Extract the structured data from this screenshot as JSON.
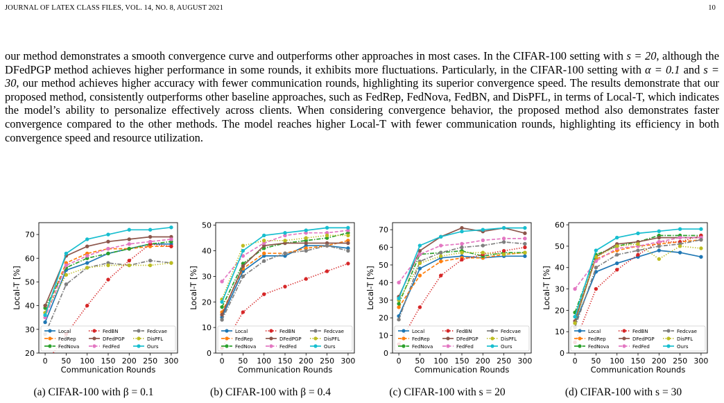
{
  "page": {
    "header_left": "JOURNAL OF LATEX CLASS FILES, VOL. 14, NO. 8, AUGUST 2021",
    "header_right": "10",
    "paragraph": {
      "s1": "our method demonstrates a smooth convergence curve and outperforms other approaches in most cases. In the CIFAR-100 setting with ",
      "m1": "s = 20",
      "s2": ", although the DFedPGP method achieves higher performance in some rounds, it exhibits more fluctuations. Particularly, in the CIFAR-100 setting with ",
      "m2": "α = 0.1",
      "s3": " and ",
      "m3": "s = 30",
      "s4": ", our method achieves higher accuracy with fewer communication rounds, highlighting its superior convergence speed. The results demonstrate that our proposed method, consistently outperforms other baseline approaches, such as FedRep, FedNova, FedBN, and DisPFL, in terms of Local-T, which indicates the model’s ability to personalize effectively across clients. When considering convergence behavior, the proposed method also demonstrates faster convergence compared to the other methods. The model reaches higher Local-T with fewer communication rounds, highlighting its efficiency in both convergence speed and resource utilization."
    }
  },
  "legend_style": {
    "Local": {
      "color": "#1f77b4",
      "dash": "solid"
    },
    "FedRep": {
      "color": "#ff7f0e",
      "dash": "dashed"
    },
    "FedNova": {
      "color": "#2ca02c",
      "dash": "dashdot"
    },
    "FedBN": {
      "color": "#d62728",
      "dash": "dotted"
    },
    "DFedPGP": {
      "color": "#8c564b",
      "dash": "solid"
    },
    "FedFed": {
      "color": "#e377c2",
      "dash": "dashed"
    },
    "Fedcvae": {
      "color": "#7f7f7f",
      "dash": "dashdot"
    },
    "DisPFL": {
      "color": "#bcbd22",
      "dash": "dotted"
    },
    "Ours": {
      "color": "#17becf",
      "dash": "solid"
    }
  },
  "chart_data": [
    {
      "type": "line",
      "caption": "(a) CIFAR-100 with β = 0.1",
      "xlabel": "Communication Rounds",
      "ylabel": "Local-T [%]",
      "x": [
        0,
        50,
        100,
        150,
        200,
        250,
        300
      ],
      "xticks": [
        0,
        50,
        100,
        150,
        200,
        250,
        300
      ],
      "yticks": [
        20,
        30,
        40,
        50,
        60,
        70
      ],
      "ylim": [
        20,
        75
      ],
      "xlim": [
        -15,
        315
      ],
      "legend": "lower-right",
      "series": [
        {
          "name": "Local",
          "values": [
            33,
            55,
            58,
            62,
            64,
            66,
            66
          ]
        },
        {
          "name": "FedRep",
          "values": [
            37,
            58,
            62,
            64,
            64,
            65,
            65
          ]
        },
        {
          "name": "FedNova",
          "values": [
            39,
            56,
            60,
            62,
            64,
            66,
            67
          ]
        },
        {
          "name": "FedBN",
          "values": [
            15,
            28,
            40,
            51,
            59,
            66,
            65
          ]
        },
        {
          "name": "DFedPGP",
          "values": [
            40,
            61,
            65,
            67,
            68,
            69,
            69
          ]
        },
        {
          "name": "FedFed",
          "values": [
            35,
            57,
            61,
            64,
            66,
            67,
            68
          ]
        },
        {
          "name": "Fedcvae",
          "values": [
            28,
            49,
            56,
            58,
            57,
            59,
            58
          ]
        },
        {
          "name": "DisPFL",
          "values": [
            37,
            53,
            56,
            57,
            57,
            57,
            58
          ]
        },
        {
          "name": "Ours",
          "values": [
            36,
            62,
            68,
            70,
            72,
            72,
            73
          ]
        }
      ]
    },
    {
      "type": "line",
      "caption": "(b) CIFAR-100 with β = 0.4",
      "xlabel": "Communication Rounds",
      "ylabel": "Local-T [%]",
      "x": [
        0,
        50,
        100,
        150,
        200,
        250,
        300
      ],
      "xticks": [
        0,
        50,
        100,
        150,
        200,
        250,
        300
      ],
      "yticks": [
        0,
        10,
        20,
        30,
        40,
        50
      ],
      "ylim": [
        0,
        51
      ],
      "xlim": [
        -15,
        315
      ],
      "legend": "lower-right",
      "series": [
        {
          "name": "Local",
          "values": [
            14,
            32,
            38,
            38,
            42,
            42,
            41
          ]
        },
        {
          "name": "FedRep",
          "values": [
            16,
            33,
            39,
            39,
            41,
            42,
            44
          ]
        },
        {
          "name": "FedNova",
          "values": [
            18,
            35,
            41,
            43,
            44,
            45,
            47
          ]
        },
        {
          "name": "FedBN",
          "values": [
            2,
            16,
            23,
            26,
            29,
            32,
            35
          ]
        },
        {
          "name": "DFedPGP",
          "values": [
            15,
            34,
            42,
            43,
            43,
            43,
            43
          ]
        },
        {
          "name": "FedFed",
          "values": [
            28,
            38,
            43,
            46,
            47,
            47,
            48
          ]
        },
        {
          "name": "Fedcvae",
          "values": [
            13,
            30,
            36,
            39,
            40,
            42,
            40
          ]
        },
        {
          "name": "DisPFL",
          "values": [
            21,
            42,
            44,
            44,
            45,
            46,
            46
          ]
        },
        {
          "name": "Ours",
          "values": [
            20,
            40,
            46,
            47,
            48,
            49,
            49
          ]
        }
      ]
    },
    {
      "type": "line",
      "caption": "(c) CIFAR-100 with s = 20",
      "xlabel": "Communication Rounds",
      "ylabel": "Local-T [%]",
      "x": [
        0,
        50,
        100,
        150,
        200,
        250,
        300
      ],
      "xticks": [
        0,
        50,
        100,
        150,
        200,
        250,
        300
      ],
      "yticks": [
        0,
        10,
        20,
        30,
        40,
        50,
        60,
        70
      ],
      "ylim": [
        0,
        74
      ],
      "xlim": [
        -15,
        315
      ],
      "legend": "lower-right",
      "series": [
        {
          "name": "Local",
          "values": [
            21,
            48,
            54,
            55,
            54,
            55,
            55
          ]
        },
        {
          "name": "FedRep",
          "values": [
            26,
            44,
            52,
            54,
            54,
            56,
            57
          ]
        },
        {
          "name": "FedNova",
          "values": [
            28,
            56,
            57,
            58,
            55,
            57,
            57
          ]
        },
        {
          "name": "FedBN",
          "values": [
            5,
            26,
            44,
            53,
            56,
            58,
            60
          ]
        },
        {
          "name": "DFedPGP",
          "values": [
            32,
            58,
            66,
            71,
            69,
            71,
            68
          ]
        },
        {
          "name": "FedFed",
          "values": [
            40,
            56,
            61,
            62,
            64,
            65,
            65
          ]
        },
        {
          "name": "Fedcvae",
          "values": [
            19,
            52,
            57,
            60,
            61,
            63,
            62
          ]
        },
        {
          "name": "DisPFL",
          "values": [
            30,
            51,
            55,
            57,
            57,
            56,
            57
          ]
        },
        {
          "name": "Ours",
          "values": [
            31,
            61,
            66,
            69,
            70,
            71,
            71
          ]
        }
      ]
    },
    {
      "type": "line",
      "caption": "(d) CIFAR-100 with s = 30",
      "xlabel": "Communication Rounds",
      "ylabel": "Local-T [%]",
      "x": [
        0,
        50,
        100,
        150,
        200,
        250,
        300
      ],
      "xticks": [
        0,
        50,
        100,
        150,
        200,
        250,
        300
      ],
      "yticks": [
        0,
        10,
        20,
        30,
        40,
        50,
        60
      ],
      "ylim": [
        0,
        61
      ],
      "xlim": [
        -15,
        315
      ],
      "legend": "lower-right",
      "series": [
        {
          "name": "Local",
          "values": [
            14,
            38,
            42,
            45,
            48,
            47,
            45
          ]
        },
        {
          "name": "FedRep",
          "values": [
            17,
            44,
            48,
            50,
            51,
            52,
            53
          ]
        },
        {
          "name": "FedNova",
          "values": [
            19,
            46,
            50,
            52,
            55,
            55,
            55
          ]
        },
        {
          "name": "FedBN",
          "values": [
            5,
            30,
            39,
            46,
            52,
            52,
            55
          ]
        },
        {
          "name": "DFedPGP",
          "values": [
            15,
            45,
            51,
            52,
            54,
            54,
            54
          ]
        },
        {
          "name": "FedFed",
          "values": [
            30,
            43,
            49,
            50,
            52,
            54,
            54
          ]
        },
        {
          "name": "Fedcvae",
          "values": [
            12,
            40,
            46,
            48,
            50,
            51,
            53
          ]
        },
        {
          "name": "DisPFL",
          "values": [
            14,
            45,
            50,
            51,
            44,
            50,
            49
          ]
        },
        {
          "name": "Ours",
          "values": [
            17,
            48,
            54,
            56,
            57,
            58,
            58
          ]
        }
      ]
    }
  ]
}
